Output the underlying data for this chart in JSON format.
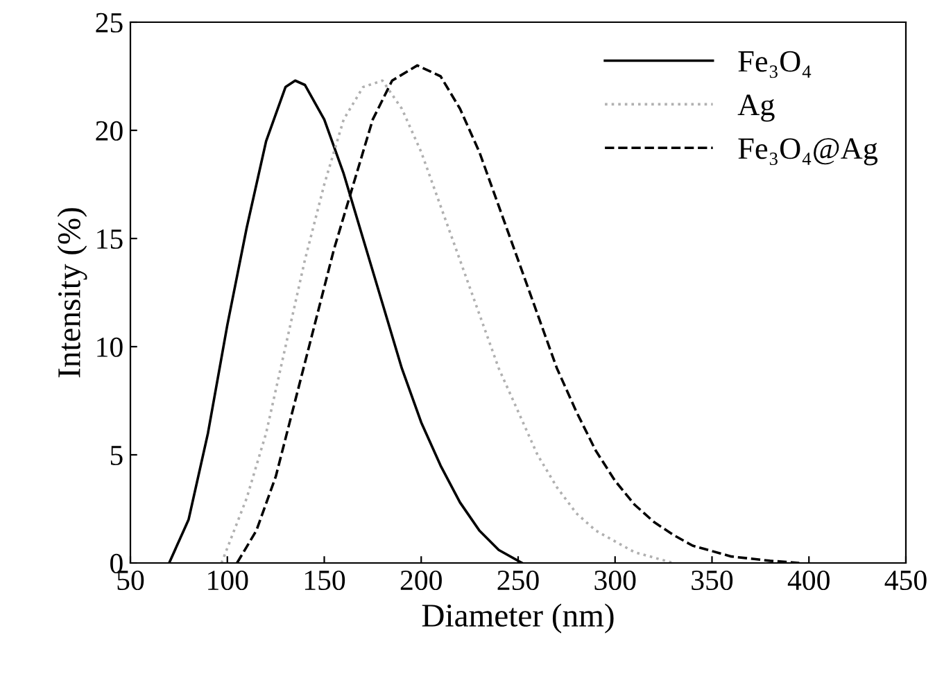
{
  "chart_data": {
    "type": "line",
    "xlabel": "Diameter (nm)",
    "ylabel": "Intensity (%)",
    "xlim": [
      50,
      450
    ],
    "ylim": [
      0,
      25
    ],
    "xticks": [
      50,
      100,
      150,
      200,
      250,
      300,
      350,
      400,
      450
    ],
    "yticks": [
      0,
      5,
      10,
      15,
      20,
      25
    ],
    "grid": false,
    "legend": "top right",
    "marker": "none",
    "series": [
      {
        "name": "Fe₃O₄",
        "color": "#000000",
        "line_style": "solid",
        "x": [
          70,
          80,
          90,
          100,
          110,
          120,
          130,
          135,
          140,
          150,
          160,
          170,
          180,
          190,
          200,
          210,
          220,
          230,
          240,
          252
        ],
        "values": [
          0,
          2,
          6,
          11,
          15.5,
          19.5,
          22,
          22.3,
          22.1,
          20.5,
          18,
          15,
          12,
          9,
          6.5,
          4.5,
          2.8,
          1.5,
          0.6,
          0
        ]
      },
      {
        "name": "Ag",
        "color": "#b0b0b0",
        "line_style": "dotted",
        "x": [
          97,
          110,
          120,
          130,
          140,
          150,
          160,
          170,
          180,
          190,
          200,
          210,
          220,
          230,
          240,
          250,
          260,
          270,
          280,
          290,
          300,
          310,
          330
        ],
        "values": [
          0,
          3,
          6,
          10,
          14,
          17.5,
          20.5,
          22,
          22.3,
          21,
          19,
          16.5,
          14,
          11.5,
          9,
          7,
          5,
          3.5,
          2.3,
          1.5,
          1,
          0.5,
          0
        ]
      },
      {
        "name": "Fe₃O₄@Ag",
        "color": "#000000",
        "line_style": "dashed",
        "x": [
          105,
          115,
          125,
          135,
          145,
          155,
          165,
          175,
          185,
          198,
          210,
          220,
          230,
          240,
          250,
          260,
          270,
          280,
          290,
          300,
          310,
          320,
          330,
          340,
          360,
          380,
          395
        ],
        "values": [
          0,
          1.5,
          4,
          7.5,
          11,
          14.5,
          17.5,
          20.5,
          22.3,
          23,
          22.5,
          21,
          19,
          16.5,
          14,
          11.5,
          9,
          7,
          5.2,
          3.8,
          2.7,
          1.9,
          1.3,
          0.8,
          0.3,
          0.1,
          0
        ]
      }
    ]
  }
}
